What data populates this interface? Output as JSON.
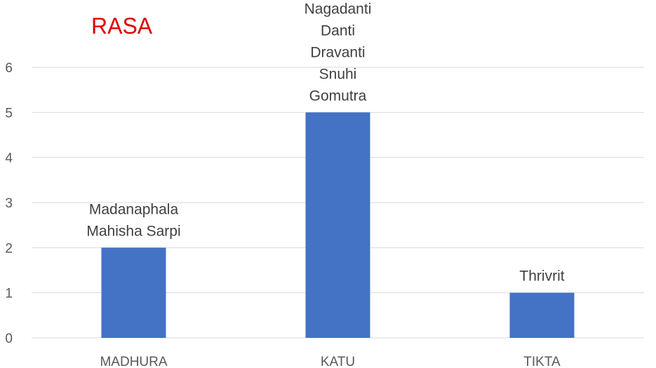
{
  "chart_data": {
    "type": "bar",
    "title": "RASA",
    "categories": [
      "MADHURA",
      "KATU",
      "TIKTA"
    ],
    "values": [
      2,
      5,
      1
    ],
    "data_labels": [
      [
        "Madanaphala",
        "Mahisha Sarpi"
      ],
      [
        "Nagadanti",
        "Danti",
        "Dravanti",
        "Snuhi",
        "Gomutra"
      ],
      [
        "Thrivrit"
      ]
    ],
    "yticks": [
      "0",
      "1",
      "2",
      "3",
      "4",
      "5",
      "6"
    ],
    "ylim": [
      0,
      6
    ],
    "grid": true,
    "legend": "none",
    "xlabel": "",
    "ylabel": ""
  },
  "colors": {
    "bar": "#4472c4",
    "title": "#e00000",
    "grid": "#d9d9d9",
    "axis_text": "#595959",
    "label_text": "#404040"
  }
}
